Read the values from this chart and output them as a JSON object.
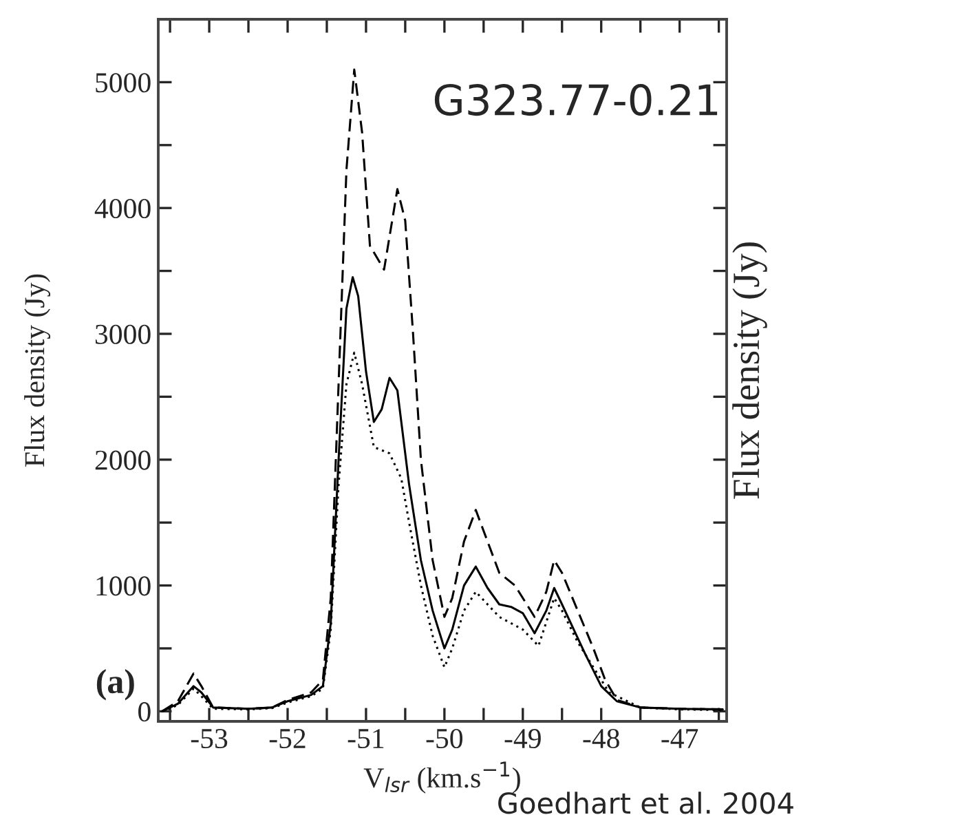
{
  "chart_data": {
    "type": "line",
    "xlabel": "V$_{lsr}$ (km.s$^{−1}$)",
    "ylabel": "Flux density (Jy)",
    "y2label": "Flux density (Jy)",
    "annotations": [
      "G323.77-0.21",
      "(a)",
      "Goedhart et al. 2004"
    ],
    "xlim": [
      -53.65,
      -46.4
    ],
    "ylim": [
      -80,
      5500
    ],
    "xticks": [
      {
        "value": -53.5,
        "label": null
      },
      -53,
      {
        "value": -52.5,
        "label": null
      },
      -52,
      {
        "value": -51.5,
        "label": null
      },
      -51,
      {
        "value": -50.5,
        "label": null
      },
      -50,
      {
        "value": -49.5,
        "label": null
      },
      -49,
      {
        "value": -48.5,
        "label": null
      },
      -48,
      {
        "value": -47.5,
        "label": null
      },
      -47,
      {
        "value": -46.5,
        "label": null
      }
    ],
    "yticks": [
      0,
      {
        "value": 500,
        "label": null
      },
      1000,
      {
        "value": 1500,
        "label": null
      },
      2000,
      {
        "value": 2500,
        "label": null
      },
      3000,
      {
        "value": 3500,
        "label": null
      },
      4000,
      {
        "value": 4500,
        "label": null
      },
      5000
    ],
    "grid": false,
    "legend": false,
    "marker": "none",
    "series": [
      {
        "color": "#000000",
        "line_style": "solid",
        "x": [
          -53.6,
          -53.4,
          -53.2,
          -53.1,
          -52.95,
          -52.5,
          -52.2,
          -52.0,
          -51.7,
          -51.55,
          -51.45,
          -51.35,
          -51.25,
          -51.17,
          -51.1,
          -51.0,
          -50.9,
          -50.8,
          -50.7,
          -50.6,
          -50.45,
          -50.3,
          -50.15,
          -50.0,
          -49.9,
          -49.75,
          -49.6,
          -49.45,
          -49.3,
          -49.15,
          -49.0,
          -48.85,
          -48.7,
          -48.6,
          -48.5,
          -48.35,
          -48.2,
          -48.0,
          -47.8,
          -47.5,
          -47.0,
          -46.45
        ],
        "values": [
          0,
          60,
          200,
          150,
          30,
          20,
          30,
          80,
          130,
          200,
          700,
          2000,
          3200,
          3450,
          3300,
          2700,
          2300,
          2400,
          2650,
          2550,
          1800,
          1200,
          800,
          500,
          650,
          1000,
          1150,
          980,
          850,
          830,
          780,
          620,
          800,
          980,
          850,
          650,
          450,
          200,
          80,
          30,
          20,
          15
        ]
      },
      {
        "color": "#000000",
        "line_style": "dashed",
        "x": [
          -53.6,
          -53.4,
          -53.2,
          -53.1,
          -52.95,
          -52.5,
          -52.2,
          -52.0,
          -51.7,
          -51.55,
          -51.45,
          -51.35,
          -51.25,
          -51.15,
          -51.05,
          -50.95,
          -50.77,
          -50.6,
          -50.5,
          -50.4,
          -50.3,
          -50.15,
          -50.0,
          -49.9,
          -49.75,
          -49.6,
          -49.45,
          -49.3,
          -49.1,
          -48.85,
          -48.7,
          -48.6,
          -48.5,
          -48.3,
          -48.1,
          -47.95,
          -47.8,
          -47.5,
          -47.0,
          -46.45
        ],
        "values": [
          0,
          80,
          300,
          200,
          30,
          20,
          30,
          90,
          150,
          250,
          900,
          2600,
          4300,
          5100,
          4600,
          3700,
          3510,
          4150,
          3900,
          3000,
          2000,
          1200,
          750,
          900,
          1350,
          1600,
          1350,
          1100,
          1000,
          750,
          950,
          1200,
          1100,
          800,
          500,
          250,
          90,
          30,
          20,
          15
        ]
      },
      {
        "color": "#000000",
        "line_style": "dotted",
        "x": [
          -53.6,
          -53.4,
          -53.2,
          -53.1,
          -52.95,
          -52.5,
          -52.2,
          -52.0,
          -51.7,
          -51.55,
          -51.45,
          -51.35,
          -51.25,
          -51.15,
          -51.05,
          -50.9,
          -50.7,
          -50.55,
          -50.45,
          -50.3,
          -50.15,
          -50.0,
          -49.9,
          -49.75,
          -49.6,
          -49.45,
          -49.3,
          -49.0,
          -48.8,
          -48.6,
          -48.5,
          -48.3,
          -48.1,
          -47.9,
          -47.5,
          -47.0,
          -46.45
        ],
        "values": [
          0,
          50,
          180,
          120,
          20,
          15,
          25,
          70,
          120,
          180,
          650,
          1800,
          2600,
          2850,
          2600,
          2100,
          2050,
          1850,
          1500,
          1000,
          600,
          350,
          500,
          800,
          950,
          850,
          750,
          650,
          520,
          900,
          800,
          550,
          350,
          150,
          30,
          15,
          10
        ]
      }
    ]
  }
}
